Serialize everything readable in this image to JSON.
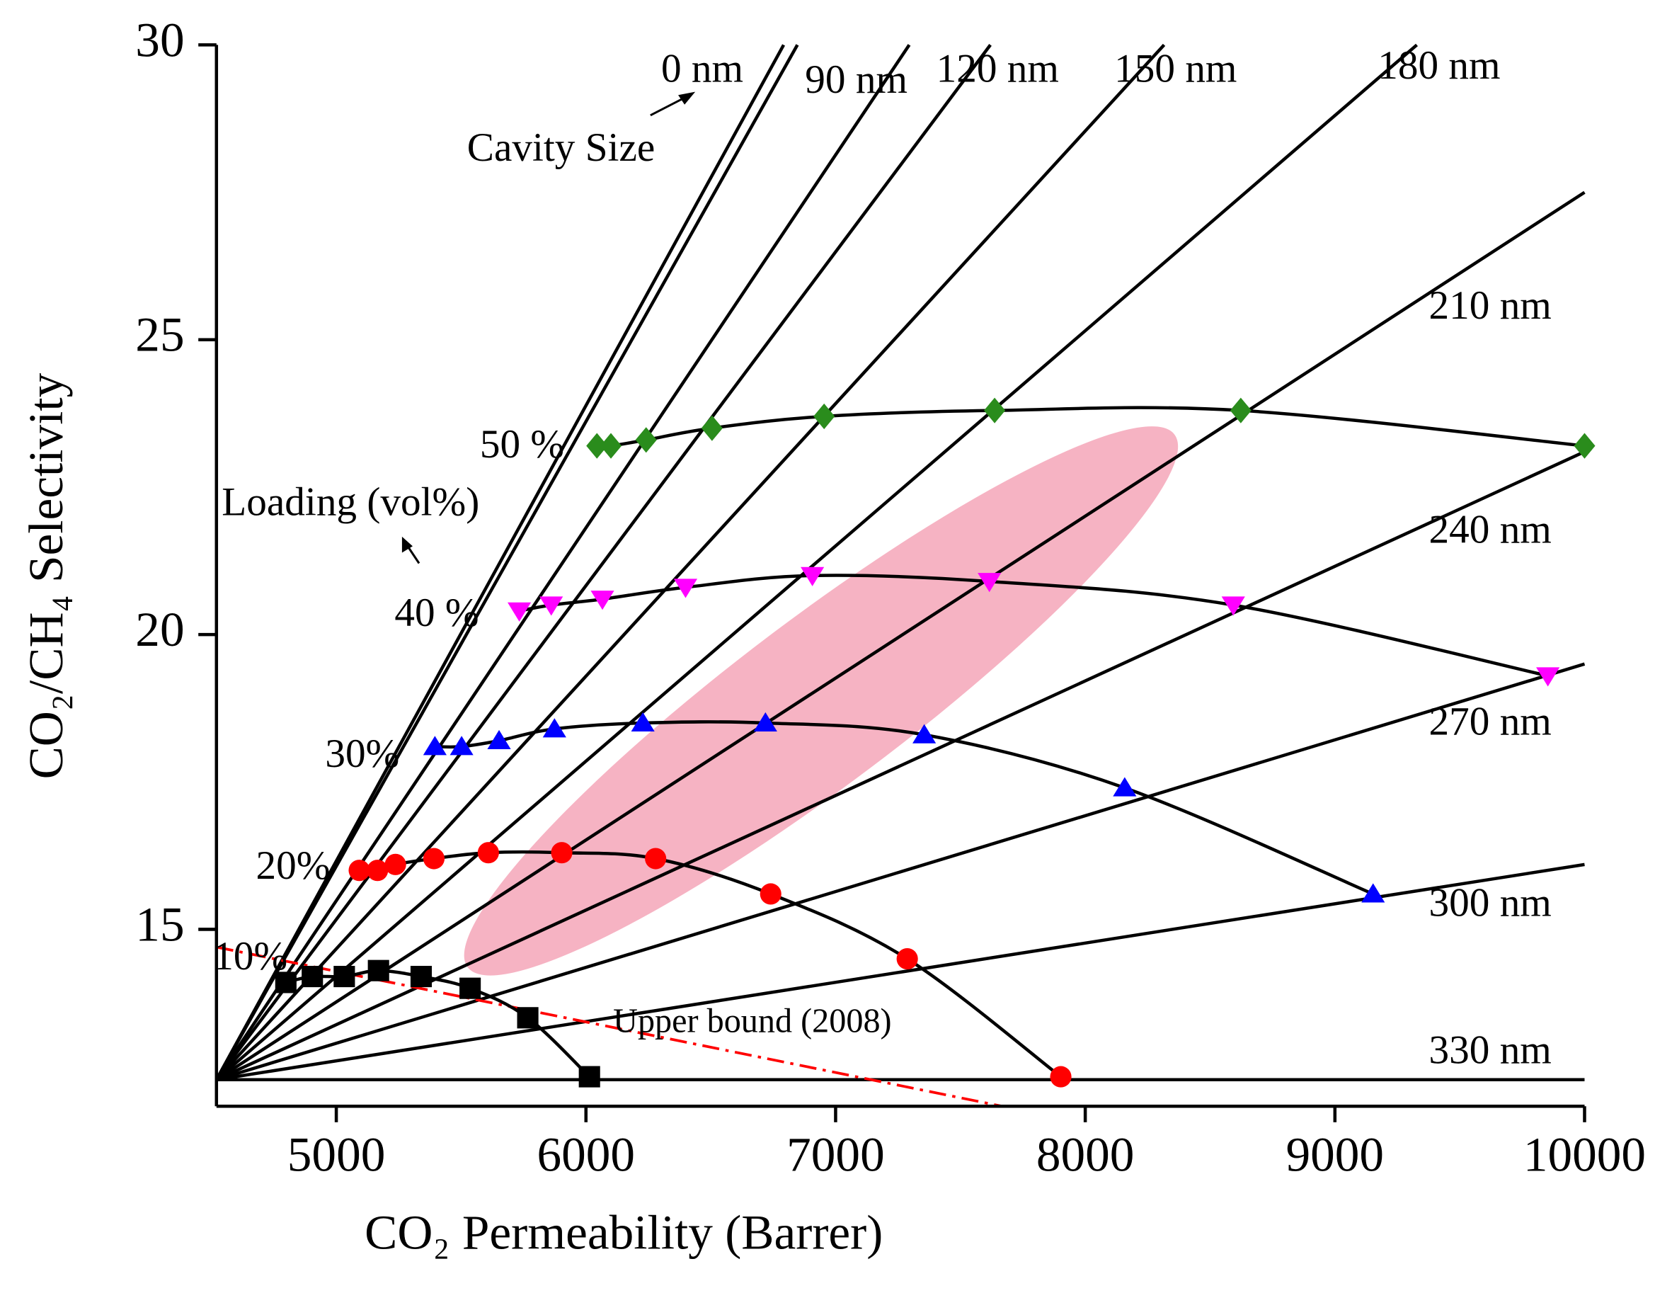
{
  "chart_data": {
    "type": "line",
    "x_label": "CO₂ Permeability (Barrer)",
    "y_label": "CO₂/CH₄ Selectivity",
    "xlim": [
      4520,
      10000
    ],
    "ylim": [
      12,
      30
    ],
    "xticks": [
      5000,
      6000,
      7000,
      8000,
      9000,
      10000
    ],
    "yticks": [
      15,
      20,
      25,
      30
    ],
    "cavity_lines": [
      {
        "name": "0 nm",
        "color": "#000000",
        "x": [
          4520,
          6792
        ],
        "y": [
          12.45,
          30
        ]
      },
      {
        "name": null,
        "color": "#000000",
        "x": [
          4520,
          6847
        ],
        "y": [
          12.45,
          30
        ]
      },
      {
        "name": "90 nm",
        "color": "#000000",
        "x": [
          4520,
          7295
        ],
        "y": [
          12.45,
          30
        ]
      },
      {
        "name": "120 nm",
        "color": "#000000",
        "x": [
          4520,
          7620
        ],
        "y": [
          12.45,
          30
        ]
      },
      {
        "name": "150 nm",
        "color": "#000000",
        "x": [
          4520,
          8316
        ],
        "y": [
          12.45,
          30
        ]
      },
      {
        "name": "180 nm",
        "color": "#000000",
        "x": [
          4520,
          9328
        ],
        "y": [
          12.45,
          30
        ]
      },
      {
        "name": "210 nm",
        "color": "#000000",
        "x": [
          4520,
          10000
        ],
        "y": [
          12.45,
          27.5
        ]
      },
      {
        "name": "240 nm",
        "color": "#000000",
        "x": [
          4520,
          10000
        ],
        "y": [
          12.45,
          23.1
        ]
      },
      {
        "name": "270 nm",
        "color": "#000000",
        "x": [
          4520,
          10000
        ],
        "y": [
          12.45,
          19.5
        ]
      },
      {
        "name": "300 nm",
        "color": "#000000",
        "x": [
          4520,
          10000
        ],
        "y": [
          12.45,
          16.1
        ]
      },
      {
        "name": "330 nm",
        "color": "#000000",
        "x": [
          4520,
          10000
        ],
        "y": [
          12.45,
          12.45
        ]
      }
    ],
    "loadings": [
      {
        "name": "50 %",
        "color": "#2a8c1c",
        "marker": "diamond",
        "x": [
          6044,
          6100,
          6241,
          6505,
          6954,
          7637,
          8623,
          10000
        ],
        "y": [
          23.2,
          23.2,
          23.3,
          23.5,
          23.7,
          23.8,
          23.8,
          23.2
        ]
      },
      {
        "name": "40 %",
        "color": "#ff00ff",
        "marker": "triangle-down",
        "x": [
          5733,
          5861,
          6066,
          6399,
          6907,
          7616,
          8593,
          9853
        ],
        "y": [
          20.4,
          20.5,
          20.6,
          20.8,
          21.0,
          20.9,
          20.5,
          19.3
        ]
      },
      {
        "name": "30%",
        "color": "#0000ff",
        "marker": "triangle-up",
        "x": [
          5395,
          5502,
          5652,
          5874,
          6228,
          6719,
          7355,
          8158,
          9153
        ],
        "y": [
          18.1,
          18.1,
          18.2,
          18.4,
          18.5,
          18.5,
          18.3,
          17.4,
          15.6
        ]
      },
      {
        "name": "20%",
        "color": "#ff0000",
        "marker": "circle",
        "x": [
          5092,
          5165,
          5237,
          5391,
          5609,
          5903,
          6279,
          6740,
          7287,
          7902
        ],
        "y": [
          16.0,
          16.0,
          16.1,
          16.2,
          16.3,
          16.3,
          16.2,
          15.6,
          14.5,
          12.5
        ]
      },
      {
        "name": "10%",
        "color": "#000000",
        "marker": "square",
        "x": [
          4798,
          4904,
          5032,
          5169,
          5340,
          5536,
          5767,
          6014
        ],
        "y": [
          14.1,
          14.2,
          14.2,
          14.3,
          14.2,
          14.0,
          13.5,
          12.5
        ]
      }
    ],
    "upper_bound": {
      "name": "Upper bound (2008)",
      "color": "#ff0000",
      "x": [
        4520,
        7667
      ],
      "y": [
        14.7,
        12.0
      ]
    },
    "annotations": [
      "Cavity Size",
      "Loading (vol%)"
    ]
  }
}
